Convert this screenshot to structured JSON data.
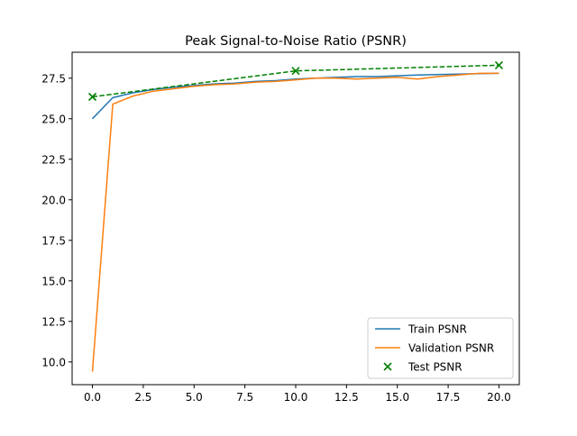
{
  "chart_data": {
    "type": "line",
    "title": "Peak Signal-to-Noise Ratio (PSNR)",
    "xlabel": "",
    "ylabel": "",
    "xlim": [
      -1,
      21
    ],
    "ylim": [
      8.6,
      29.1
    ],
    "xticks": [
      0,
      2.5,
      5,
      7.5,
      10,
      12.5,
      15,
      17.5,
      20
    ],
    "xtick_labels": [
      "0.0",
      "2.5",
      "5.0",
      "7.5",
      "10.0",
      "12.5",
      "15.0",
      "17.5",
      "20.0"
    ],
    "yticks": [
      10,
      12.5,
      15,
      17.5,
      20,
      22.5,
      25,
      27.5
    ],
    "ytick_labels": [
      "10.0",
      "12.5",
      "15.0",
      "17.5",
      "20.0",
      "22.5",
      "25.0",
      "27.5"
    ],
    "grid": false,
    "legend_position": "lower-right",
    "series": [
      {
        "name": "Train PSNR",
        "kind": "line",
        "color": "#1f77b4",
        "x": [
          0,
          1,
          2,
          3,
          4,
          5,
          6,
          7,
          8,
          9,
          10,
          11,
          12,
          13,
          14,
          15,
          16,
          17,
          18,
          19,
          20
        ],
        "y": [
          25.0,
          26.3,
          26.6,
          26.8,
          26.95,
          27.05,
          27.15,
          27.2,
          27.3,
          27.35,
          27.45,
          27.5,
          27.55,
          27.6,
          27.6,
          27.65,
          27.7,
          27.72,
          27.75,
          27.78,
          27.8
        ]
      },
      {
        "name": "Validation PSNR",
        "kind": "line",
        "color": "#ff7f0e",
        "x": [
          0,
          1,
          2,
          3,
          4,
          5,
          6,
          7,
          8,
          9,
          10,
          11,
          12,
          13,
          14,
          15,
          16,
          17,
          18,
          19,
          20
        ],
        "y": [
          9.4,
          25.9,
          26.4,
          26.7,
          26.85,
          27.0,
          27.1,
          27.15,
          27.25,
          27.3,
          27.4,
          27.5,
          27.5,
          27.45,
          27.5,
          27.55,
          27.45,
          27.6,
          27.7,
          27.8,
          27.8
        ]
      },
      {
        "name": "Test PSNR",
        "kind": "scatter",
        "marker": "x",
        "color": "#008000",
        "connect_dashed": true,
        "x": [
          0,
          10,
          20
        ],
        "y": [
          26.35,
          27.95,
          28.3
        ]
      }
    ]
  }
}
